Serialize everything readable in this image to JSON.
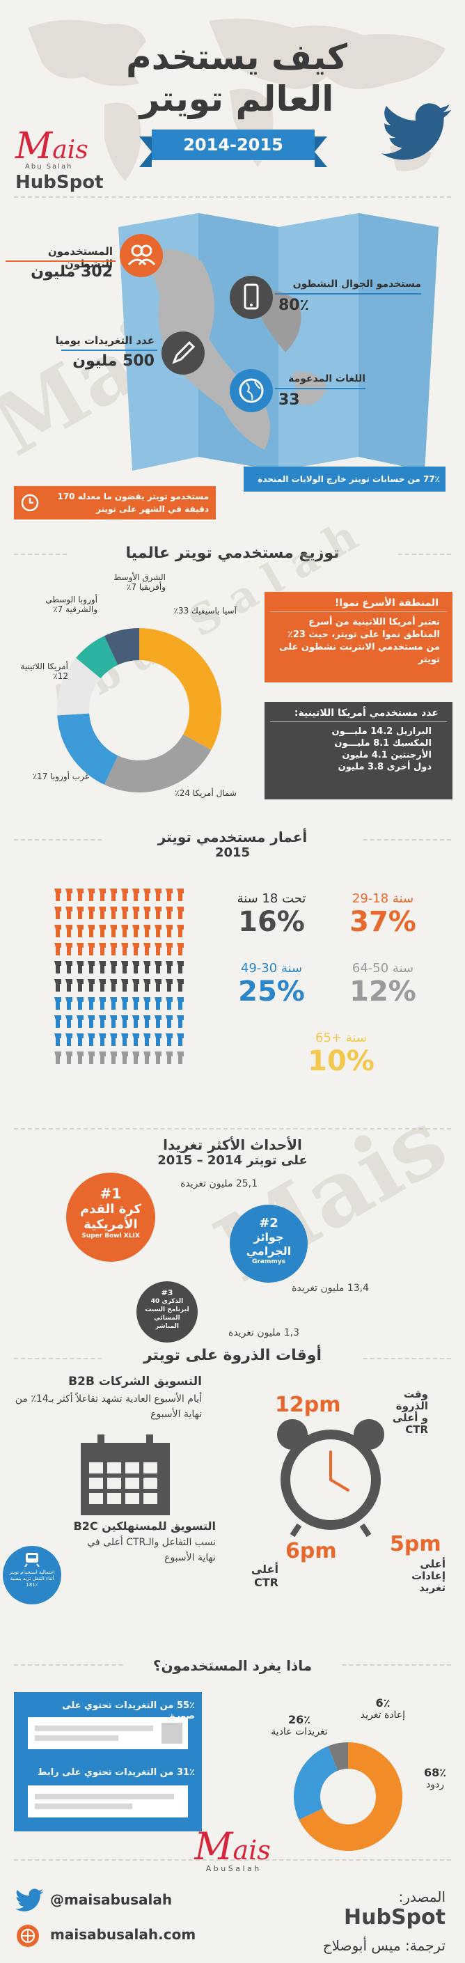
{
  "header": {
    "title_line1": "كيف يستخدم",
    "title_line2": "العالم تويتر",
    "years": "2014-2015",
    "brand_ais": "ais",
    "brand_sub": "Abu Salah",
    "hubspot": "HubSpot"
  },
  "stats": {
    "active_users_label": "المستخدمون النشطون",
    "active_users_value": "302 مليون",
    "mobile_label": "مستخدمو الجوال النشطون",
    "mobile_value": "80٪",
    "tweets_label": "عدد التغريدات يوميا",
    "tweets_value": "500 مليون",
    "languages_label": "اللغات المدعومة",
    "languages_value": "33",
    "outside_us": "77٪ من حسابات تويتر خارج الولايات المتحدة",
    "minutes": "مستخدمو تويتر يقضون ما معدله 170 دقيقة في الشهر على تويتر"
  },
  "distribution": {
    "title": "توزيع مستخدمي تويتر عالميا",
    "fastest_title": "المنطقة الأسرع نموا!",
    "fastest_text": "تعتبر أمريكا اللاتينية من أسرع المناطق نموا على تويتر، حيث 23٪ من مستخدمي الانترنت نشطون على تويتر",
    "latam_title": "عدد مستخدمي أمريكا اللاتينية:",
    "latam_lines": [
      "البرازيل 14.2 مليـــون",
      "المكسيك 8.1 مليـــون",
      "الأرجنتين 4.1 مليون",
      "دول أخرى 3.8 مليون"
    ]
  },
  "chart_data": {
    "type": "pie",
    "labels": [
      "آسيا باسيفيك 33٪",
      "شمال أمريكا 24٪",
      "غرب أوروبا 17٪",
      "أمريكا اللاتينية 12٪",
      "أوروبا الوسطى والشرقية 7٪",
      "الشرق الأوسط وأفريقيا 7٪"
    ],
    "values": [
      33,
      24,
      17,
      12,
      7,
      7
    ],
    "colors": [
      "#f7a823",
      "#a0a0a0",
      "#3d9ad8",
      "#e8e8e8",
      "#2bb3a0",
      "#475d7a"
    ]
  },
  "ages": {
    "title_line1": "أعمار مستخدمي تويتر",
    "title_line2": "2015",
    "g1_label": "تحت 18 سنة",
    "g1_value": "16%",
    "g2_label": "29-18 سنة",
    "g2_value": "37%",
    "g3_label": "49-30 سنة",
    "g3_value": "25%",
    "g4_label": "64-50 سنة",
    "g4_value": "12%",
    "g5_label": "65+ سنة",
    "g5_value": "10%"
  },
  "events": {
    "title_line1": "الأحداث الأكثر تغريدا",
    "title_line2": "على تويتر 2014 – 2015",
    "e1_count": "25,1 مليون تغريدة",
    "e1_rank": "#1",
    "e1_name": "كرة القدم الأمريكية",
    "e1_sub": "Super Bowl XLIX",
    "e2_rank": "#2",
    "e2_name": "جوائز الجرامي",
    "e2_sub": "Grammys",
    "e2_count": "13,4 مليون تغريدة",
    "e3_rank": "#3",
    "e3_name": "الذكرى 40 لبرنامج السبت المسائي المباشر",
    "e3_count": "1,3 مليون تغريدة"
  },
  "peak": {
    "title": "أوقات الذروة على تويتر",
    "b2b_title": "التسويق الشركات B2B",
    "b2b_text": "أيام الأسبوع العادية تشهد تفاعلاً أكثر بـ14٪ من نهاية الأسبوع",
    "b2c_title": "التسويق للمستهلكين B2C",
    "b2c_text": "نسب التفاعل والـCTR أعلى في نهاية الأسبوع",
    "t12": "12pm",
    "t12_label": "وقت الذروة و أعلى CTR",
    "t5": "5pm",
    "t5_label": "أعلى إعادات تغريد",
    "t6": "6pm",
    "t6_label": "أعلى CTR",
    "train": "احتمالية استخدام تويتر أثناء التنقل تزيد بنسبة 181٪"
  },
  "tweets": {
    "title": "ماذا يغرد المستخدمون؟",
    "photo": "55٪ من التغريدات تحتوي على صورة",
    "link": "31٪ من التغريدات تحتوي على رابط",
    "retweet_pct": "6٪",
    "retweet_label": "إعادة تغريد",
    "regular_pct": "26٪",
    "regular_label": "تغريدات عادية",
    "replies_pct": "68٪",
    "replies_label": "ردود"
  },
  "donut2": {
    "values": [
      68,
      26,
      6
    ],
    "colors": [
      "#f28c28",
      "#3d9ad8",
      "#7a7a7a"
    ]
  },
  "footer": {
    "twitter": "@maisabusalah",
    "site": "maisabusalah.com",
    "source_label": "المصدر:",
    "source": "HubSpot",
    "translation": "ترجمة: ميس أبوصلاح",
    "brand_ais": "ais",
    "brand_sub": "A b u   S a l a h"
  }
}
